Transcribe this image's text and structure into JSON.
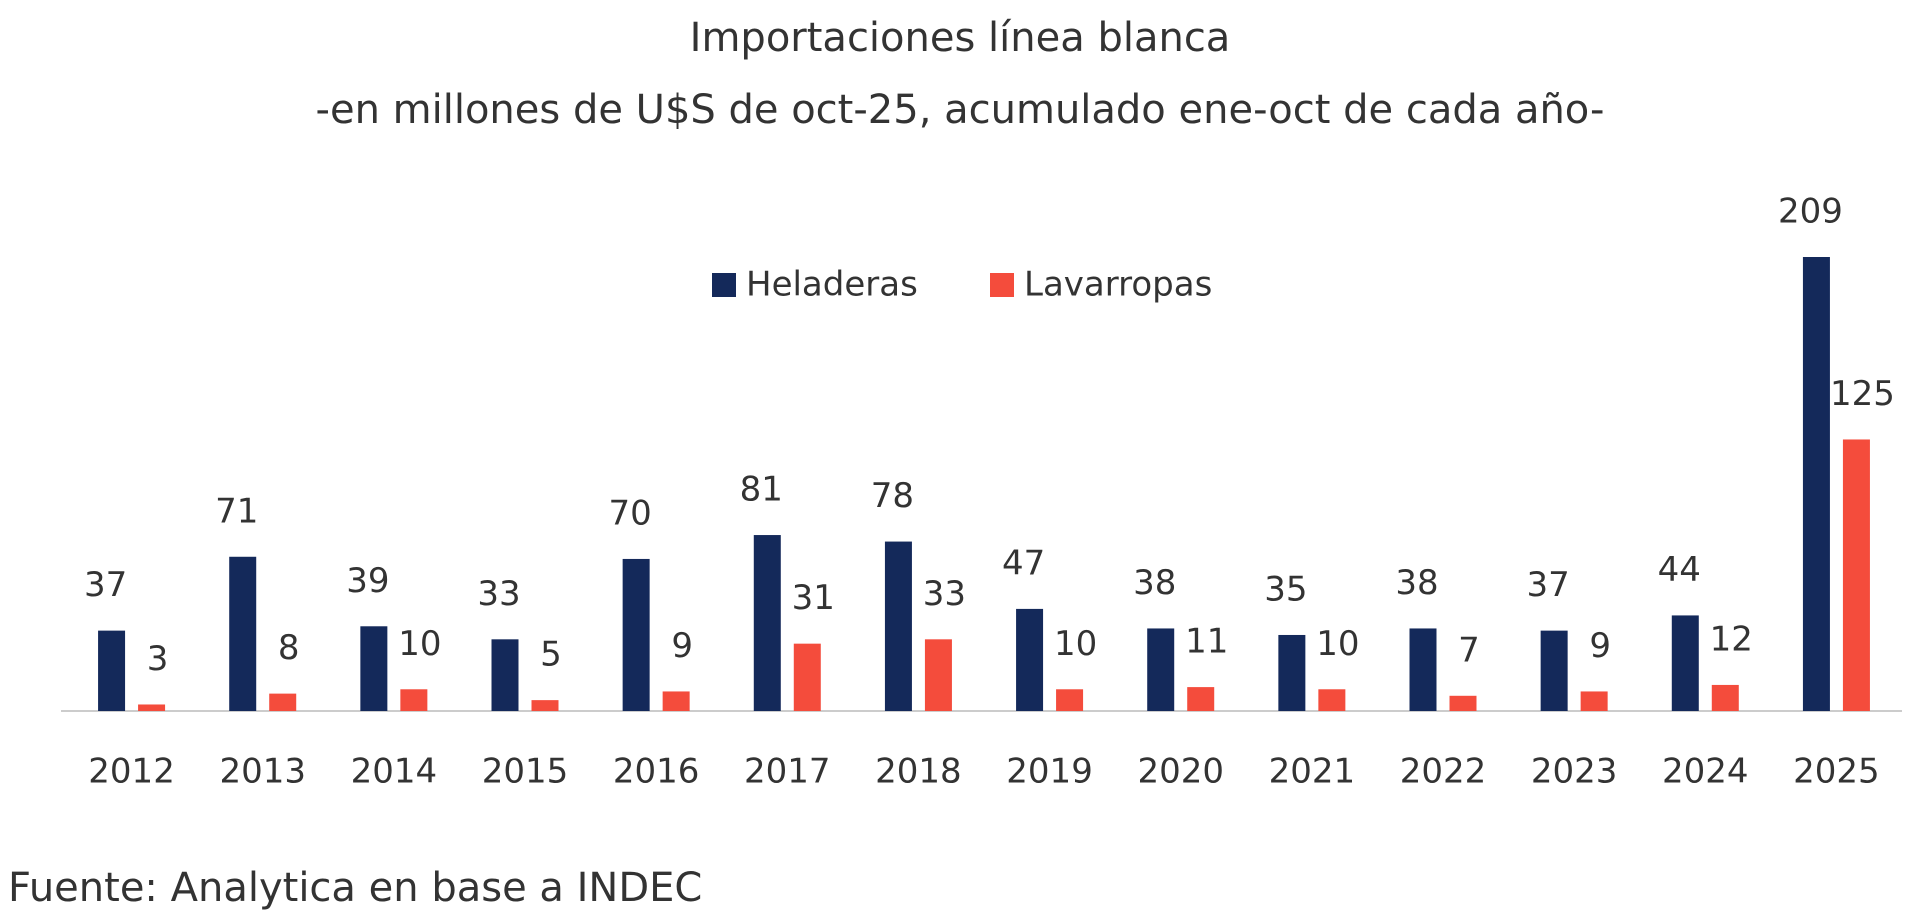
{
  "chart_data": {
    "type": "bar",
    "title": "Importaciones línea blanca",
    "subtitle": "-en millones de U$S de oct-25, acumulado ene-oct de cada año-",
    "categories": [
      "2012",
      "2013",
      "2014",
      "2015",
      "2016",
      "2017",
      "2018",
      "2019",
      "2020",
      "2021",
      "2022",
      "2023",
      "2024",
      "2025"
    ],
    "series": [
      {
        "name": "Heladeras",
        "color": "#14295a",
        "values": [
          37,
          71,
          39,
          33,
          70,
          81,
          78,
          47,
          38,
          35,
          38,
          37,
          44,
          209
        ]
      },
      {
        "name": "Lavarropas",
        "color": "#f44c3c",
        "values": [
          3,
          8,
          10,
          5,
          9,
          31,
          33,
          10,
          11,
          10,
          7,
          9,
          12,
          125
        ]
      }
    ],
    "source": "Fuente: Analytica en base a INDEC"
  }
}
